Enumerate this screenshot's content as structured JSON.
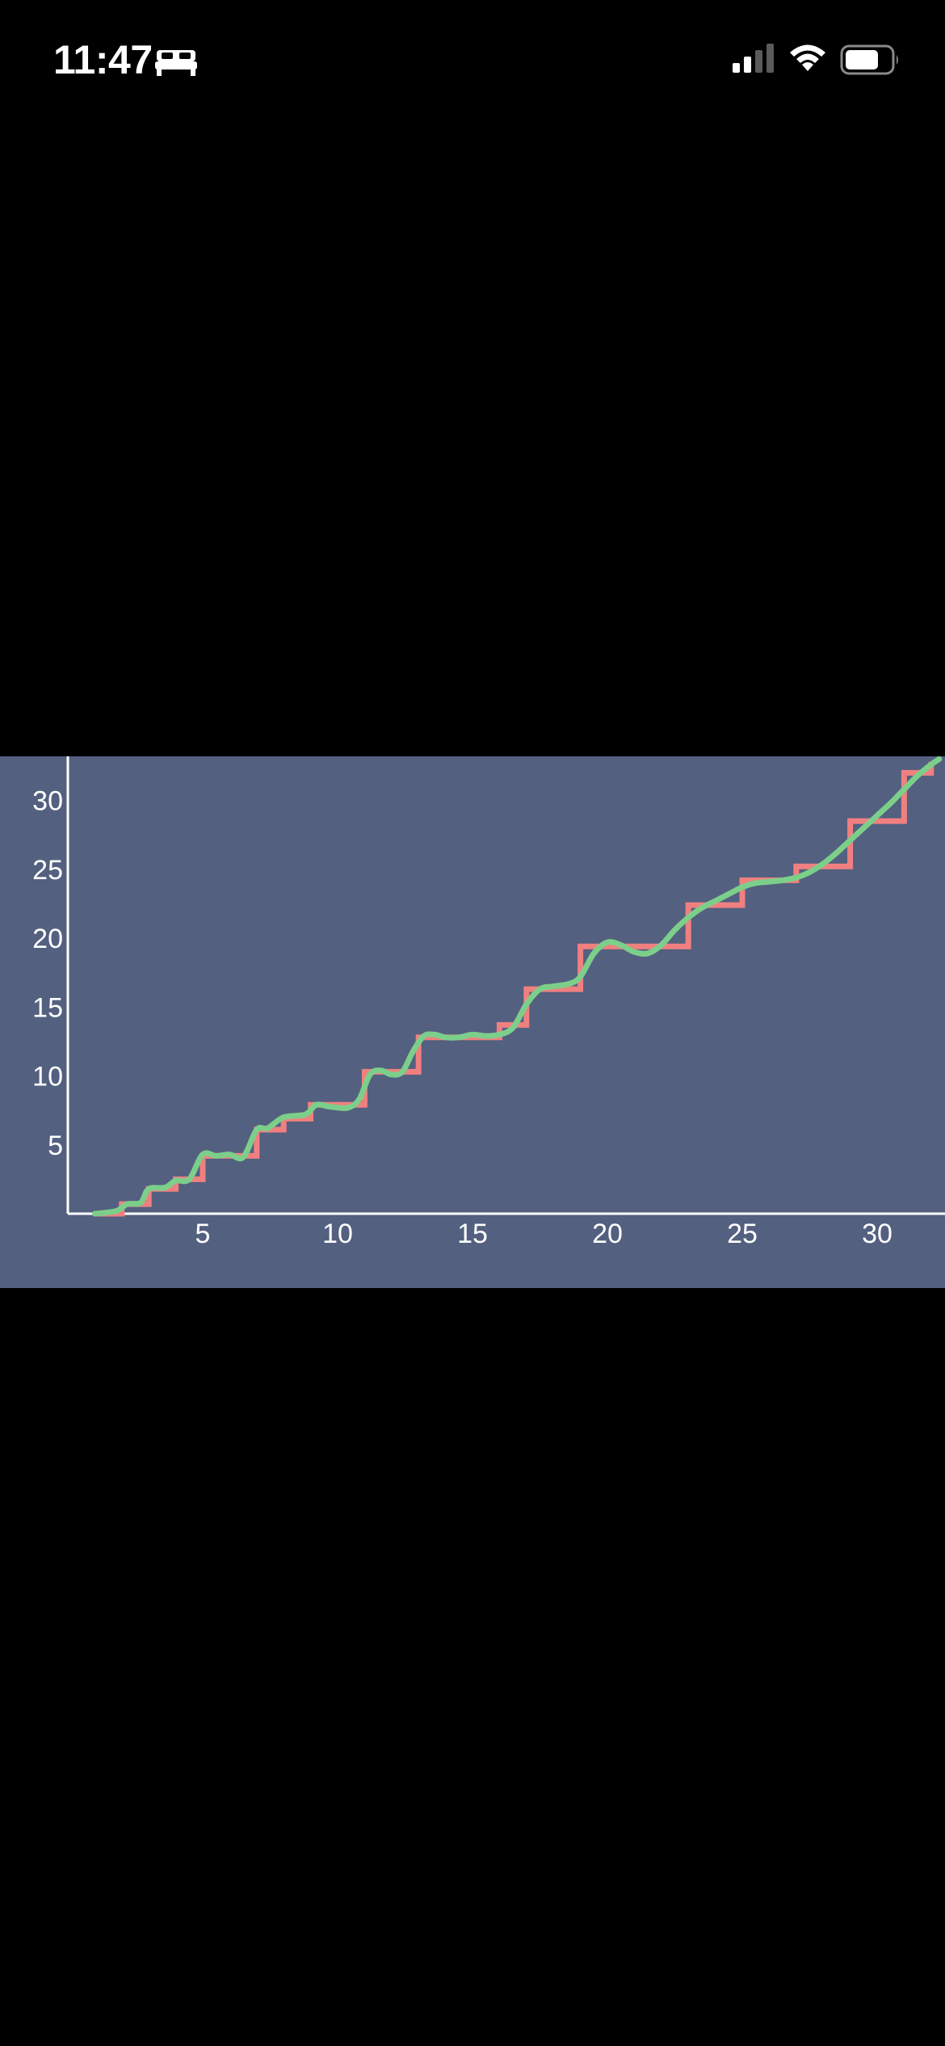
{
  "status_bar": {
    "time": "11:47",
    "icons": [
      "bed-icon",
      "cellular-signal-icon",
      "wifi-icon",
      "battery-icon"
    ]
  },
  "colors": {
    "background": "#000000",
    "chart_background": "#53607f",
    "axis": "#ffffff",
    "step_series": "#f08080",
    "smooth_series": "#7ccf8a"
  },
  "chart_data": {
    "type": "line",
    "title": "",
    "xlabel": "",
    "ylabel": "",
    "xlim": [
      0,
      32.3
    ],
    "ylim": [
      0,
      33
    ],
    "x_ticks": [
      5,
      10,
      15,
      20,
      25,
      30
    ],
    "y_ticks": [
      5,
      10,
      15,
      20,
      25,
      30
    ],
    "grid": false,
    "legend": "none",
    "series": [
      {
        "style": "step",
        "color": "#f08080",
        "x": [
          1,
          2,
          3,
          4,
          5,
          7,
          8,
          9,
          11,
          13,
          16,
          17,
          19,
          23,
          25,
          27,
          29,
          31,
          32
        ],
        "y": [
          0,
          0.7,
          1.8,
          2.5,
          4.2,
          6.1,
          6.9,
          7.9,
          10.3,
          12.8,
          13.7,
          16.3,
          19.4,
          22.4,
          24.2,
          25.2,
          28.5,
          32,
          32.8
        ]
      },
      {
        "style": "smooth",
        "color": "#7ccf8a",
        "x": [
          1,
          1.8,
          2.2,
          2.7,
          3,
          3.6,
          4,
          4.5,
          5,
          5.5,
          6,
          6.5,
          7,
          7.4,
          8,
          8.8,
          9.2,
          9.6,
          10,
          10.4,
          10.8,
          11.2,
          11.6,
          12,
          12.4,
          12.8,
          13.2,
          13.6,
          14,
          14.5,
          15,
          15.5,
          16,
          16.5,
          17,
          17.5,
          18,
          18.6,
          19,
          19.5,
          20,
          20.5,
          21,
          21.5,
          22,
          22.5,
          23,
          23.5,
          24,
          24.5,
          25,
          25.5,
          26,
          26.5,
          27,
          27.5,
          28,
          28.5,
          29,
          29.5,
          30,
          30.5,
          31,
          31.5,
          32,
          32.3
        ],
        "y": [
          0,
          0.2,
          0.7,
          0.8,
          1.8,
          1.9,
          2.4,
          2.5,
          4.3,
          4.2,
          4.3,
          4.1,
          6.1,
          6.2,
          7,
          7.2,
          7.9,
          7.8,
          7.7,
          7.7,
          8.3,
          10.1,
          10.4,
          10.1,
          10.3,
          11.8,
          12.9,
          13,
          12.8,
          12.8,
          13,
          12.9,
          13,
          13.5,
          15.2,
          16.3,
          16.5,
          16.7,
          17.2,
          18.9,
          19.7,
          19.5,
          19,
          18.9,
          19.5,
          20.6,
          21.5,
          22.2,
          22.7,
          23.2,
          23.7,
          24,
          24.1,
          24.2,
          24.4,
          24.8,
          25.4,
          26.2,
          27.1,
          28,
          28.9,
          29.8,
          30.8,
          31.8,
          32.6,
          33
        ]
      }
    ]
  }
}
